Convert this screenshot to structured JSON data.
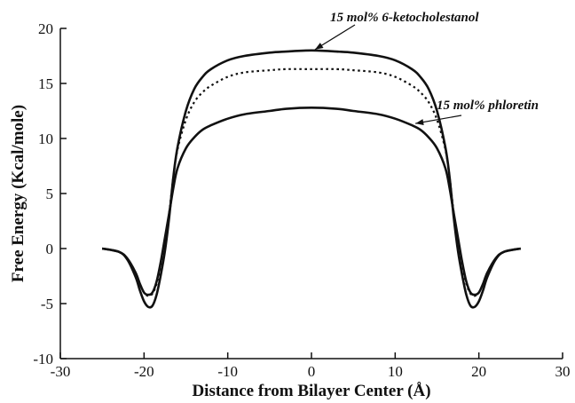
{
  "chart_data": {
    "type": "line",
    "xlabel": "Distance from Bilayer Center (Å)",
    "ylabel": "Free Energy (Kcal/mole)",
    "xlim": [
      -30,
      30
    ],
    "ylim": [
      -10,
      20
    ],
    "xticks": [
      "-30",
      "-20",
      "-10",
      "0",
      "10",
      "20",
      "30"
    ],
    "yticks": [
      "-10",
      "-5",
      "0",
      "5",
      "10",
      "15",
      "20"
    ],
    "grid": false,
    "series": [
      {
        "style": "solid",
        "x": [
          -25,
          -23,
          -22,
          -21,
          -20.5,
          -20,
          -19.5,
          -19,
          -18.5,
          -18,
          -17.5,
          -17,
          -16.5,
          -16,
          -15,
          -14,
          -13,
          -12,
          -10,
          -8,
          -5,
          -3,
          0,
          3,
          5,
          8,
          10,
          12,
          13,
          14,
          15,
          16,
          16.5,
          17,
          17.5,
          18,
          18.5,
          19,
          19.5,
          20,
          20.5,
          21,
          22,
          23,
          25
        ],
        "y": [
          0,
          -0.3,
          -1.0,
          -2.6,
          -3.8,
          -4.8,
          -5.3,
          -5.2,
          -4.2,
          -2.4,
          -0.2,
          2.8,
          6.5,
          9.2,
          12.5,
          14.5,
          15.6,
          16.3,
          17.1,
          17.5,
          17.8,
          17.9,
          18.0,
          17.9,
          17.8,
          17.5,
          17.1,
          16.3,
          15.6,
          14.5,
          12.5,
          9.2,
          6.5,
          2.8,
          -0.2,
          -2.4,
          -4.2,
          -5.2,
          -5.3,
          -4.8,
          -3.8,
          -2.6,
          -1.0,
          -0.3,
          0
        ]
      },
      {
        "style": "dotted",
        "x": [
          -25,
          -23,
          -22,
          -21,
          -20.5,
          -20,
          -19.5,
          -19,
          -18.5,
          -18,
          -17.5,
          -17,
          -16.5,
          -16,
          -15,
          -14,
          -13,
          -12,
          -10,
          -8,
          -5,
          -3,
          0,
          3,
          5,
          8,
          10,
          12,
          13,
          14,
          15,
          16,
          16.5,
          17,
          17.5,
          18,
          18.5,
          19,
          19.5,
          20,
          20.5,
          21,
          22,
          23,
          25
        ],
        "y": [
          0,
          -0.3,
          -0.9,
          -2.2,
          -3.2,
          -4.0,
          -4.3,
          -4.1,
          -3.2,
          -1.6,
          0.4,
          3.2,
          6.5,
          9.0,
          11.7,
          13.3,
          14.2,
          14.8,
          15.6,
          16.0,
          16.2,
          16.3,
          16.3,
          16.3,
          16.2,
          16.0,
          15.6,
          14.8,
          14.2,
          13.3,
          11.7,
          9.0,
          6.5,
          3.2,
          0.4,
          -1.6,
          -3.2,
          -4.1,
          -4.3,
          -4.0,
          -3.2,
          -2.2,
          -0.9,
          -0.3,
          0
        ]
      },
      {
        "style": "solid",
        "x": [
          -25,
          -23,
          -22,
          -21,
          -20.5,
          -20,
          -19.5,
          -19,
          -18.5,
          -18,
          -17.5,
          -17,
          -16.5,
          -16,
          -15,
          -14,
          -13,
          -12,
          -10,
          -8,
          -5,
          -3,
          0,
          3,
          5,
          8,
          10,
          12,
          13,
          14,
          15,
          16,
          16.5,
          17,
          17.5,
          18,
          18.5,
          19,
          19.5,
          20,
          20.5,
          21,
          22,
          23,
          25
        ],
        "y": [
          0,
          -0.3,
          -0.9,
          -2.2,
          -3.2,
          -4.0,
          -4.2,
          -4.0,
          -3.0,
          -1.2,
          1.0,
          3.2,
          5.5,
          7.3,
          9.1,
          10.1,
          10.8,
          11.2,
          11.8,
          12.2,
          12.5,
          12.7,
          12.8,
          12.7,
          12.5,
          12.2,
          11.8,
          11.2,
          10.8,
          10.1,
          9.1,
          7.3,
          5.5,
          3.2,
          1.0,
          -1.2,
          -3.0,
          -4.0,
          -4.2,
          -4.0,
          -3.2,
          -2.2,
          -0.9,
          -0.3,
          0
        ]
      }
    ],
    "annotations": [
      {
        "text": "15 mol% 6-ketocholestanol",
        "target_x": 0,
        "target_y": 18.0
      },
      {
        "text": "15 mol% phloretin",
        "target_x": 12,
        "target_y": 11.2
      }
    ]
  },
  "colors": {
    "line": "#111111",
    "axis": "#111111"
  }
}
